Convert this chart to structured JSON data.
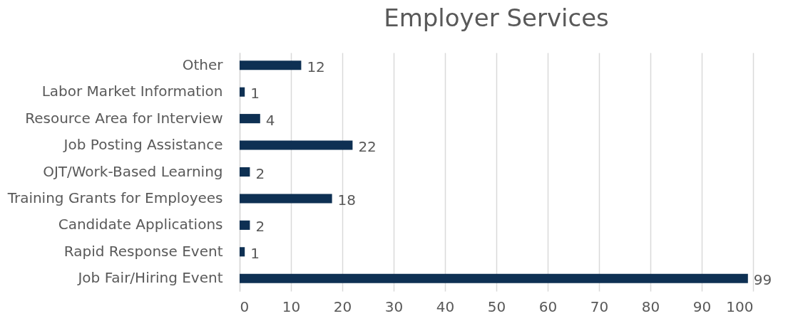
{
  "chart_data": {
    "type": "bar",
    "title": "Employer Services",
    "orientation": "horizontal",
    "categories": [
      "Other",
      "Labor Market Information",
      "Resource Area for Interview",
      "Job Posting Assistance",
      "OJT/Work-Based Learning",
      "Training Grants for Employees",
      "Candidate Applications",
      "Rapid Response Event",
      "Job Fair/Hiring Event"
    ],
    "values": [
      12,
      1,
      4,
      22,
      2,
      18,
      2,
      1,
      99
    ],
    "color": "#0e3053",
    "xlim": [
      0,
      100
    ],
    "xticks": [
      0,
      10,
      20,
      30,
      40,
      50,
      60,
      70,
      80,
      90,
      100
    ],
    "grid": "x",
    "data_labels": true
  }
}
